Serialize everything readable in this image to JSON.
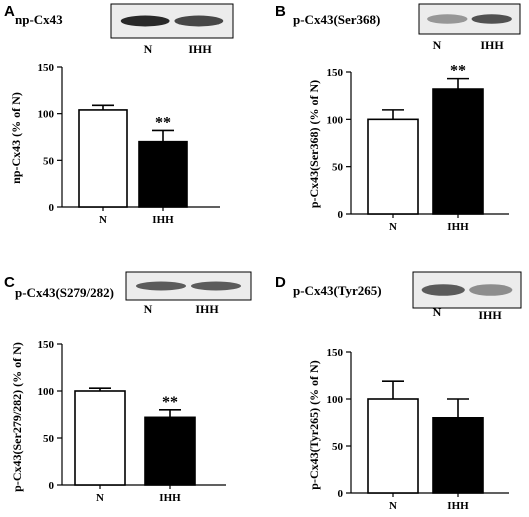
{
  "chart_data": [
    {
      "type": "bar",
      "panel_letter": "A",
      "blot_label": "np-Cx43",
      "ylabel": "np-Cx43 (% of N)",
      "categories": [
        "N",
        "IHH"
      ],
      "values": [
        104,
        70
      ],
      "errors": [
        5,
        12
      ],
      "bar_colors": [
        "#ffffff",
        "#000000"
      ],
      "significance": [
        "",
        "**"
      ],
      "ylim": [
        0,
        150
      ],
      "yticks": [
        "0",
        "50",
        "100",
        "150"
      ],
      "blot_bands": [
        0.95,
        0.8
      ]
    },
    {
      "type": "bar",
      "panel_letter": "B",
      "blot_label": "p-Cx43(Ser368)",
      "ylabel": "p-Cx43(Ser368) (% of N)",
      "categories": [
        "N",
        "IHH"
      ],
      "values": [
        100,
        132
      ],
      "errors": [
        10,
        11
      ],
      "bar_colors": [
        "#ffffff",
        "#000000"
      ],
      "significance": [
        "",
        "**"
      ],
      "ylim": [
        0,
        150
      ],
      "yticks": [
        "0",
        "50",
        "100",
        "150"
      ],
      "blot_bands": [
        0.4,
        0.75
      ]
    },
    {
      "type": "bar",
      "panel_letter": "C",
      "blot_label": "p-Cx43(S279/282)",
      "ylabel": "p-Cx43(Ser279/282) (% of N)",
      "categories": [
        "N",
        "IHH"
      ],
      "values": [
        100,
        72
      ],
      "errors": [
        3,
        8
      ],
      "bar_colors": [
        "#ffffff",
        "#000000"
      ],
      "significance": [
        "",
        "**"
      ],
      "ylim": [
        0,
        150
      ],
      "yticks": [
        "0",
        "50",
        "100",
        "150"
      ],
      "blot_bands": [
        0.7,
        0.7
      ]
    },
    {
      "type": "bar",
      "panel_letter": "D",
      "blot_label": "p-Cx43(Tyr265)",
      "ylabel": "p-Cx43(Tyr265) (% of N)",
      "categories": [
        "N",
        "IHH"
      ],
      "values": [
        100,
        80
      ],
      "errors": [
        19,
        20
      ],
      "bar_colors": [
        "#ffffff",
        "#000000"
      ],
      "significance": [
        "",
        ""
      ],
      "ylim": [
        0,
        150
      ],
      "yticks": [
        "0",
        "50",
        "100",
        "150"
      ],
      "blot_bands": [
        0.7,
        0.45
      ]
    }
  ]
}
